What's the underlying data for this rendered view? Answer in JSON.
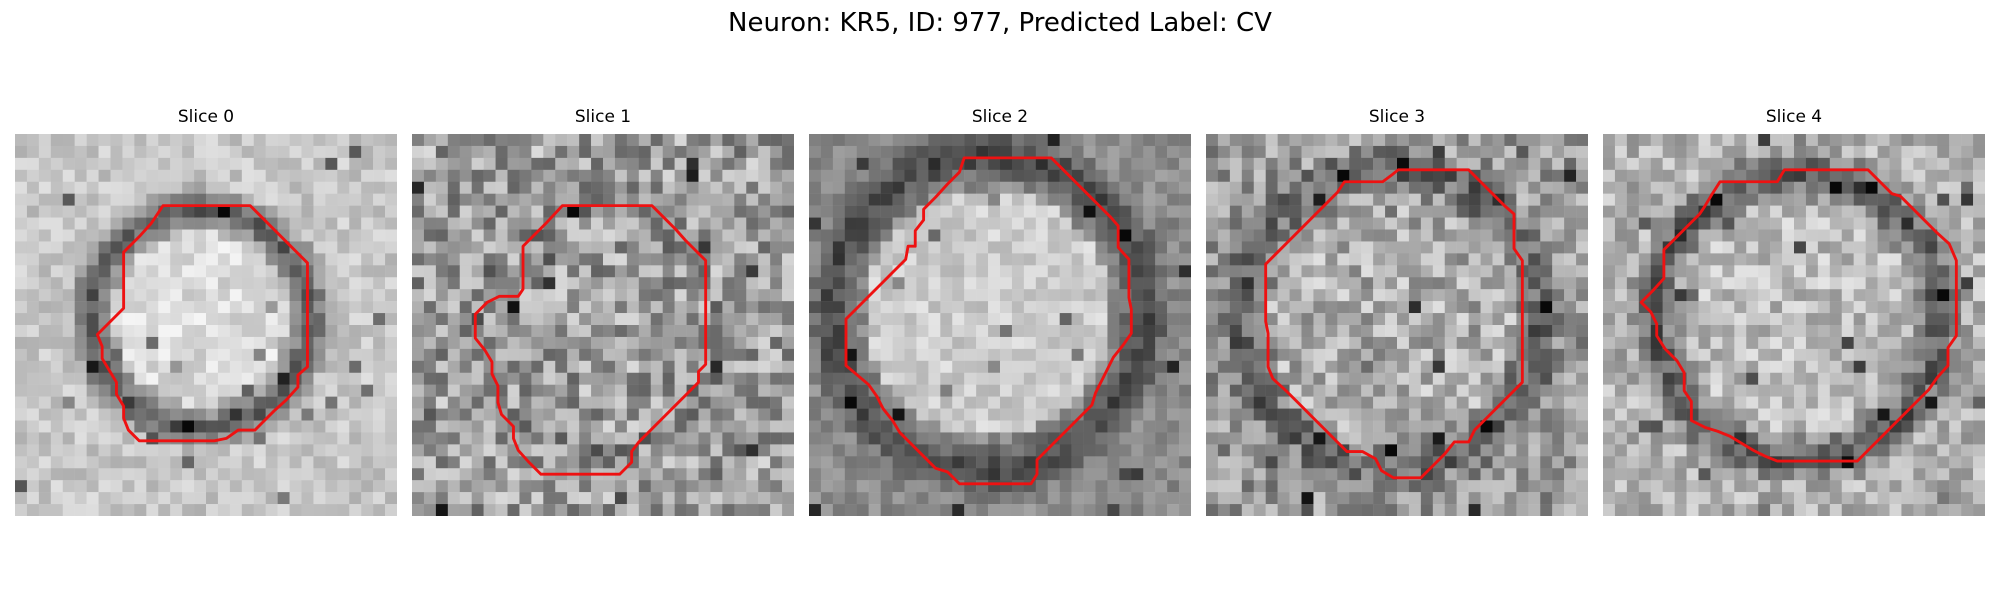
{
  "title": "Neuron: KR5, ID: 977, Predicted Label: CV",
  "panels": [
    {
      "label": "Slice 0"
    },
    {
      "label": "Slice 1"
    },
    {
      "label": "Slice 2"
    },
    {
      "label": "Slice 3"
    },
    {
      "label": "Slice 4"
    }
  ],
  "colors": {
    "contour": "#ee1111",
    "background": "#ffffff"
  },
  "image_style": "grayscale microscopy slices with red segmentation contours"
}
